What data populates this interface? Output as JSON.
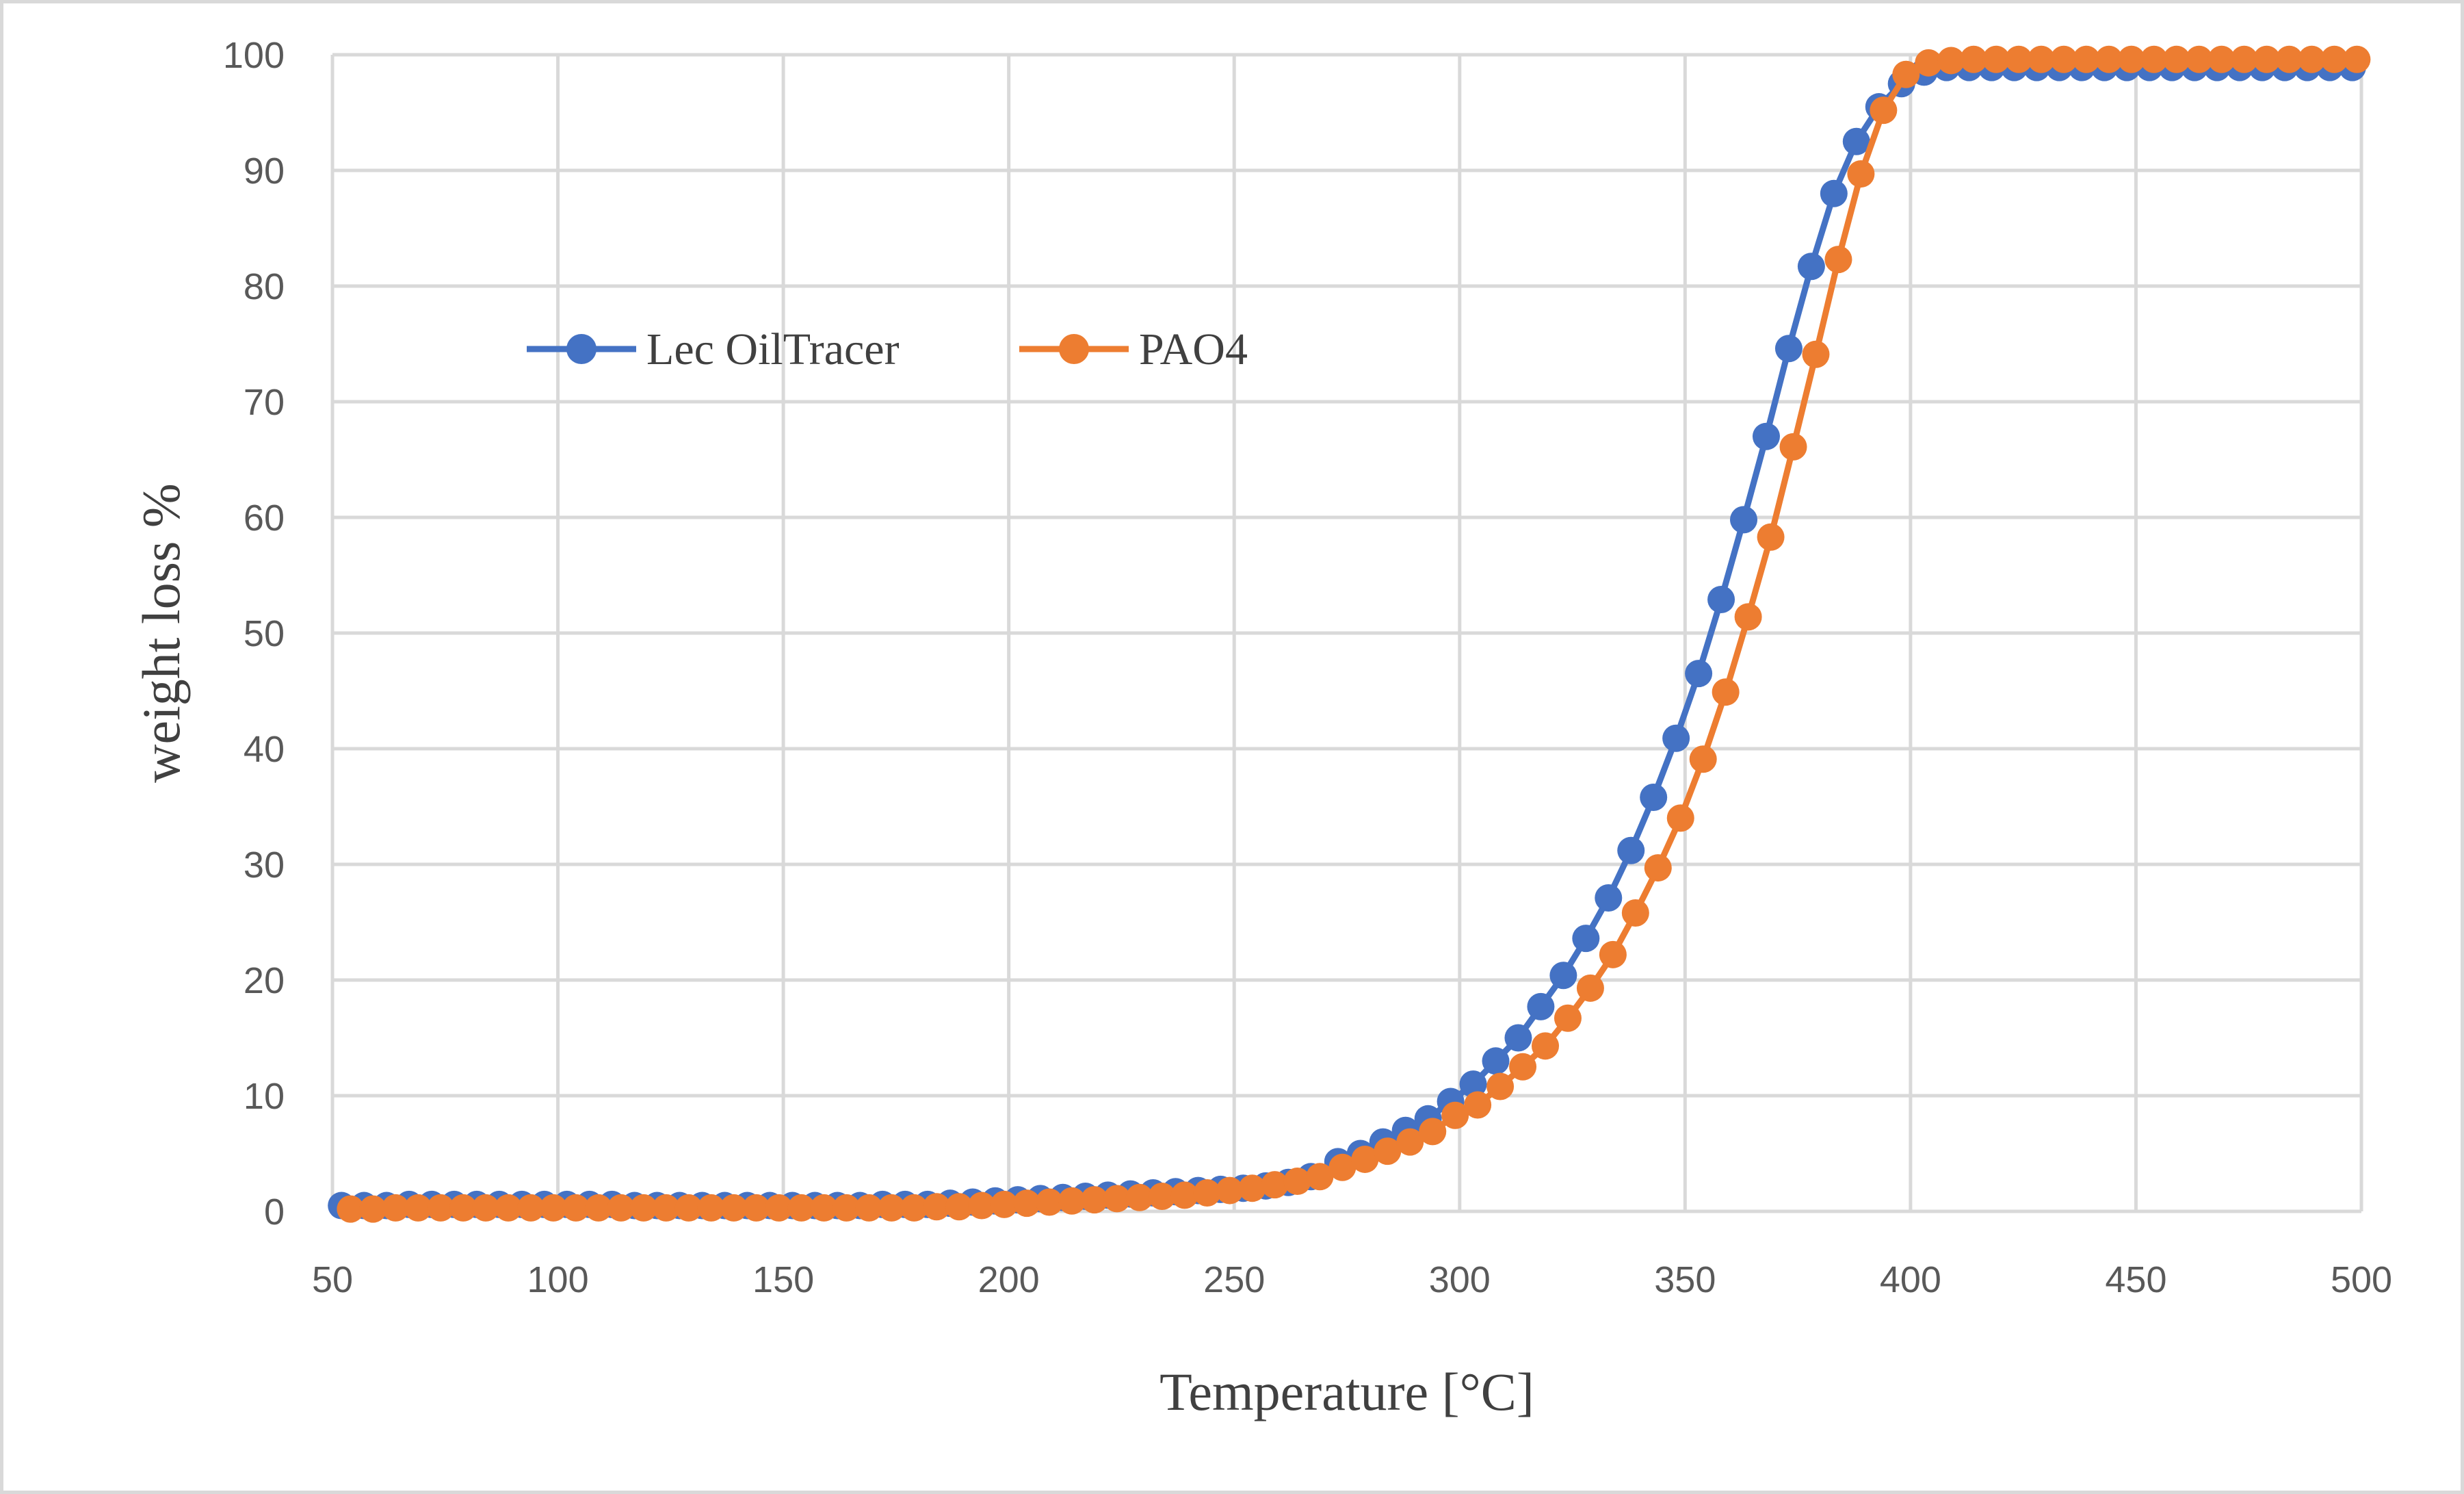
{
  "chart_data": {
    "type": "line",
    "title": "",
    "xlabel": "Temperature [°C]",
    "ylabel": "weight loss %",
    "xlim": [
      50,
      500
    ],
    "ylim": [
      0,
      100
    ],
    "xticks": [
      50,
      100,
      150,
      200,
      250,
      300,
      350,
      400,
      450,
      500
    ],
    "yticks": [
      0,
      10,
      20,
      30,
      40,
      50,
      60,
      70,
      80,
      90,
      100
    ],
    "grid": true,
    "legend_position": "upper-left-inside",
    "series": [
      {
        "name": "Lec OilTracer",
        "color": "#4472c4",
        "marker": "circle",
        "x": [
          52,
          57,
          62,
          67,
          72,
          77,
          82,
          87,
          92,
          97,
          102,
          107,
          112,
          117,
          122,
          127,
          132,
          137,
          142,
          147,
          152,
          157,
          162,
          167,
          172,
          177,
          182,
          187,
          192,
          197,
          202,
          207,
          212,
          217,
          222,
          227,
          232,
          237,
          242,
          247,
          252,
          257,
          262,
          267,
          273,
          278,
          283,
          288,
          293,
          298,
          303,
          308,
          313,
          318,
          323,
          328,
          333,
          338,
          343,
          348,
          353,
          358,
          363,
          368,
          373,
          378,
          383,
          388,
          393,
          398,
          403,
          408,
          413,
          418,
          423,
          428,
          433,
          438,
          443,
          448,
          453,
          458,
          463,
          468,
          473,
          478,
          483,
          488,
          493,
          498
        ],
        "values": [
          0.5,
          0.5,
          0.5,
          0.6,
          0.6,
          0.6,
          0.6,
          0.6,
          0.6,
          0.6,
          0.6,
          0.6,
          0.6,
          0.5,
          0.5,
          0.5,
          0.5,
          0.5,
          0.5,
          0.5,
          0.5,
          0.5,
          0.5,
          0.5,
          0.6,
          0.6,
          0.6,
          0.7,
          0.8,
          0.9,
          1.0,
          1.1,
          1.2,
          1.3,
          1.4,
          1.5,
          1.6,
          1.7,
          1.8,
          1.9,
          2.0,
          2.2,
          2.5,
          3.0,
          4.3,
          5.0,
          6.0,
          7.0,
          8.0,
          9.5,
          11.0,
          13.0,
          15.0,
          17.7,
          20.4,
          23.6,
          27.1,
          31.2,
          35.8,
          40.9,
          46.5,
          52.9,
          59.8,
          67.0,
          74.6,
          81.7,
          88.0,
          92.5,
          95.5,
          97.5,
          98.5,
          98.9,
          98.9,
          98.9,
          98.9,
          98.9,
          98.9,
          98.9,
          98.9,
          98.9,
          98.9,
          98.9,
          98.9,
          98.9,
          98.9,
          98.9,
          98.9,
          98.9,
          98.9,
          98.9
        ]
      },
      {
        "name": "PAO4",
        "color": "#ed7d31",
        "marker": "circle",
        "x": [
          54,
          59,
          64,
          69,
          74,
          79,
          84,
          89,
          94,
          99,
          104,
          109,
          114,
          119,
          124,
          129,
          134,
          139,
          144,
          149,
          154,
          159,
          164,
          169,
          174,
          179,
          184,
          189,
          194,
          199,
          204,
          209,
          214,
          219,
          224,
          229,
          234,
          239,
          244,
          249,
          254,
          259,
          264,
          269,
          274,
          279,
          284,
          289,
          294,
          299,
          304,
          309,
          314,
          319,
          324,
          329,
          334,
          339,
          344,
          349,
          354,
          359,
          364,
          369,
          374,
          379,
          384,
          389,
          394,
          399,
          404,
          409,
          414,
          419,
          424,
          429,
          434,
          439,
          444,
          449,
          454,
          459,
          464,
          469,
          474,
          479,
          484,
          489,
          494,
          499
        ],
        "values": [
          0.2,
          0.2,
          0.3,
          0.3,
          0.3,
          0.3,
          0.3,
          0.3,
          0.3,
          0.3,
          0.3,
          0.3,
          0.3,
          0.3,
          0.3,
          0.3,
          0.3,
          0.3,
          0.3,
          0.3,
          0.3,
          0.3,
          0.3,
          0.3,
          0.3,
          0.3,
          0.4,
          0.4,
          0.5,
          0.6,
          0.7,
          0.8,
          0.9,
          1.0,
          1.1,
          1.2,
          1.3,
          1.4,
          1.6,
          1.8,
          2.0,
          2.3,
          2.6,
          3.0,
          3.8,
          4.5,
          5.2,
          6.0,
          6.9,
          8.3,
          9.2,
          10.8,
          12.5,
          14.3,
          16.7,
          19.3,
          22.2,
          25.8,
          29.7,
          34.0,
          39.1,
          44.9,
          51.4,
          58.3,
          66.1,
          74.1,
          82.3,
          89.7,
          95.2,
          98.3,
          99.3,
          99.5,
          99.6,
          99.6,
          99.6,
          99.6,
          99.6,
          99.6,
          99.6,
          99.6,
          99.6,
          99.6,
          99.6,
          99.6,
          99.6,
          99.6,
          99.6,
          99.6,
          99.6,
          99.6
        ]
      }
    ]
  }
}
